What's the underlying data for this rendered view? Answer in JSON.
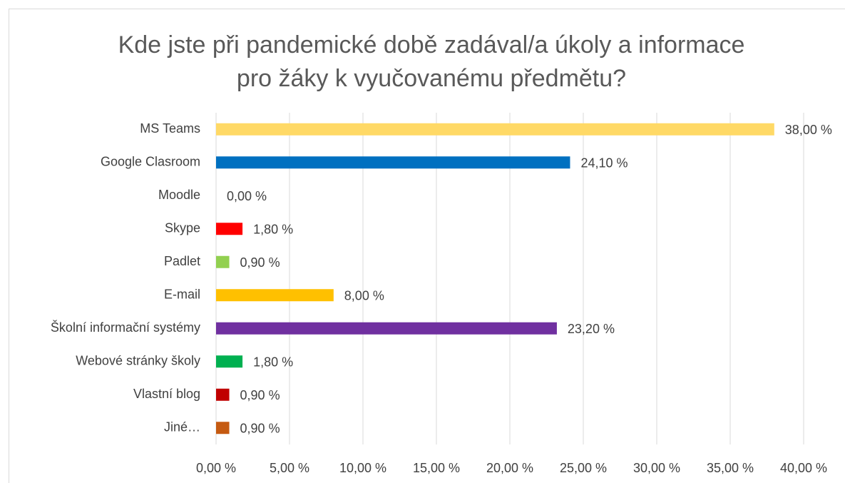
{
  "chart_data": {
    "type": "bar",
    "orientation": "horizontal",
    "title": "Kde jste při pandemické době zadával/a úkoly a informace pro žáky k vyučovanému předmětu?",
    "categories": [
      "MS Teams",
      "Google Clasroom",
      "Moodle",
      "Skype",
      "Padlet",
      "E-mail",
      "Školní informační systémy",
      "Webové stránky školy",
      "Vlastní blog",
      "Jiné…"
    ],
    "values": [
      38,
      24.1,
      0,
      1.8,
      0.9,
      8,
      23.2,
      1.8,
      0.9,
      0.9
    ],
    "value_labels": [
      "38,00 %",
      "24,10 %",
      "0,00 %",
      "1,80 %",
      "0,90 %",
      "8,00 %",
      "23,20 %",
      "1,80 %",
      "0,90 %",
      "0,90 %"
    ],
    "colors": [
      "#ffd966",
      "#0070c0",
      "#a5a5a5",
      "#ff0000",
      "#92d050",
      "#ffc000",
      "#7030a0",
      "#00b050",
      "#c00000",
      "#c55a11"
    ],
    "xlim": [
      0,
      40
    ],
    "xticks": [
      {
        "value": 0,
        "label": "0,00 %"
      },
      {
        "value": 5,
        "label": "5,00 %"
      },
      {
        "value": 10,
        "label": "10,00 %"
      },
      {
        "value": 15,
        "label": "15,00 %"
      },
      {
        "value": 20,
        "label": "20,00 %"
      },
      {
        "value": 25,
        "label": "25,00 %"
      },
      {
        "value": 30,
        "label": "30,00 %"
      },
      {
        "value": 35,
        "label": "35,00 %"
      },
      {
        "value": 40,
        "label": "40,00 %"
      }
    ],
    "grid": true
  }
}
